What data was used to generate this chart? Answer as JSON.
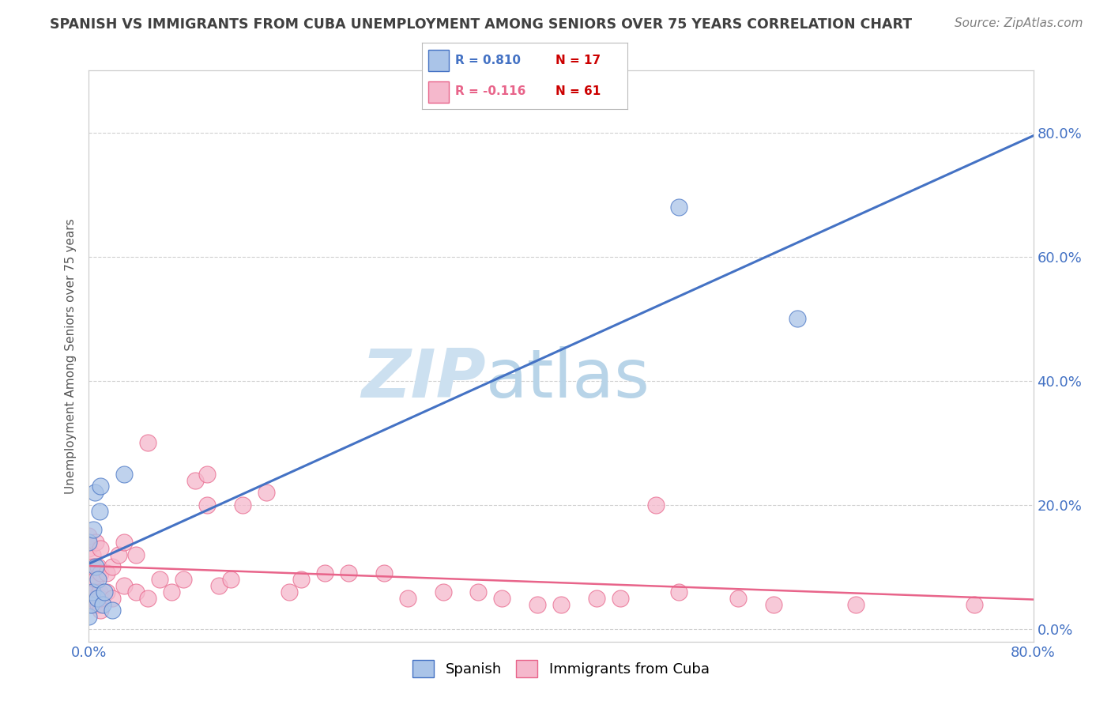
{
  "title": "SPANISH VS IMMIGRANTS FROM CUBA UNEMPLOYMENT AMONG SENIORS OVER 75 YEARS CORRELATION CHART",
  "source": "Source: ZipAtlas.com",
  "ylabel": "Unemployment Among Seniors over 75 years",
  "legend_spanish_R": "R = 0.810",
  "legend_spanish_N": "N = 17",
  "legend_cuba_R": "R = -0.116",
  "legend_cuba_N": "N = 61",
  "color_spanish": "#aac4e8",
  "color_cuba": "#f5b8cc",
  "color_line_spanish": "#4472c4",
  "color_line_cuba": "#e8648a",
  "color_title": "#404040",
  "color_source": "#808080",
  "color_tick": "#4472c4",
  "grid_color": "#d0d0d0",
  "background_color": "#ffffff",
  "xlim": [
    0.0,
    0.8
  ],
  "ylim": [
    -0.02,
    0.9
  ],
  "spanish_x": [
    0.0,
    0.0,
    0.002,
    0.003,
    0.004,
    0.005,
    0.006,
    0.007,
    0.008,
    0.009,
    0.01,
    0.012,
    0.013,
    0.02,
    0.03,
    0.5,
    0.6
  ],
  "spanish_y": [
    0.02,
    0.14,
    0.04,
    0.06,
    0.16,
    0.22,
    0.1,
    0.05,
    0.08,
    0.19,
    0.23,
    0.04,
    0.06,
    0.03,
    0.25,
    0.68,
    0.5
  ],
  "cuba_x": [
    0.0,
    0.0,
    0.0,
    0.0,
    0.0,
    0.002,
    0.003,
    0.003,
    0.004,
    0.004,
    0.005,
    0.006,
    0.006,
    0.007,
    0.008,
    0.008,
    0.009,
    0.01,
    0.01,
    0.01,
    0.01,
    0.015,
    0.015,
    0.02,
    0.02,
    0.025,
    0.03,
    0.03,
    0.04,
    0.04,
    0.05,
    0.05,
    0.06,
    0.07,
    0.08,
    0.09,
    0.1,
    0.1,
    0.11,
    0.12,
    0.13,
    0.15,
    0.17,
    0.18,
    0.2,
    0.22,
    0.25,
    0.27,
    0.3,
    0.33,
    0.35,
    0.38,
    0.4,
    0.43,
    0.45,
    0.48,
    0.5,
    0.55,
    0.58,
    0.65,
    0.75
  ],
  "cuba_y": [
    0.06,
    0.08,
    0.1,
    0.13,
    0.15,
    0.05,
    0.07,
    0.12,
    0.04,
    0.1,
    0.06,
    0.08,
    0.14,
    0.05,
    0.04,
    0.1,
    0.06,
    0.03,
    0.05,
    0.09,
    0.13,
    0.06,
    0.09,
    0.05,
    0.1,
    0.12,
    0.07,
    0.14,
    0.06,
    0.12,
    0.05,
    0.3,
    0.08,
    0.06,
    0.08,
    0.24,
    0.2,
    0.25,
    0.07,
    0.08,
    0.2,
    0.22,
    0.06,
    0.08,
    0.09,
    0.09,
    0.09,
    0.05,
    0.06,
    0.06,
    0.05,
    0.04,
    0.04,
    0.05,
    0.05,
    0.2,
    0.06,
    0.05,
    0.04,
    0.04,
    0.04
  ],
  "watermark_zip": "ZIP",
  "watermark_atlas": "atlas",
  "watermark_color_zip": "#cce0f0",
  "watermark_color_atlas": "#b8d4e8"
}
